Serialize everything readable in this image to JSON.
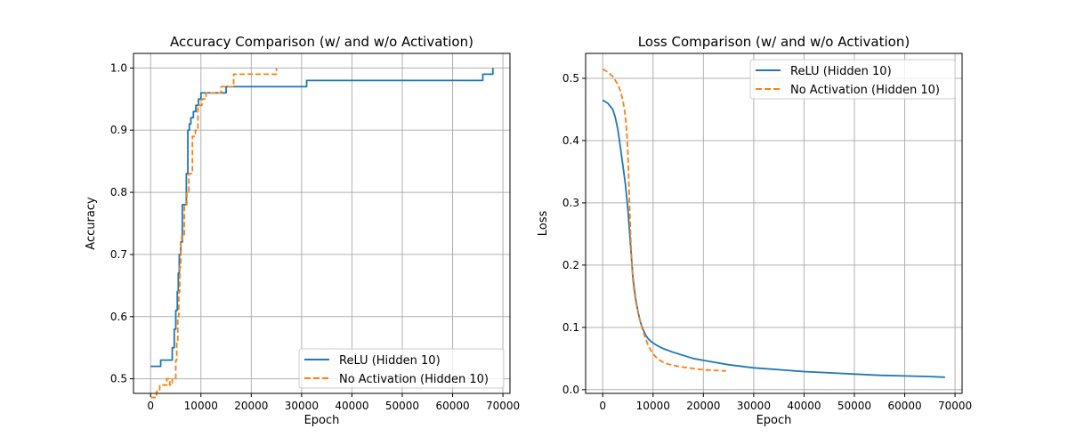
{
  "colors": {
    "relu": "#1f77b4",
    "noact": "#ff7f0e",
    "grid": "#b0b0b0",
    "axis": "#000000"
  },
  "chart_data": [
    {
      "type": "line",
      "title": "Accuracy Comparison (w/ and w/o Activation)",
      "xlabel": "Epoch",
      "ylabel": "Accuracy",
      "xlim": [
        -3400,
        71400
      ],
      "ylim": [
        0.4765,
        1.0235
      ],
      "xticks": [
        0,
        10000,
        20000,
        30000,
        40000,
        50000,
        60000,
        70000
      ],
      "yticks": [
        0.5,
        0.6,
        0.7,
        0.8,
        0.9,
        1.0
      ],
      "xtick_labels": [
        "0",
        "10000",
        "20000",
        "30000",
        "40000",
        "50000",
        "60000",
        "70000"
      ],
      "ytick_labels": [
        "0.5",
        "0.6",
        "0.7",
        "0.8",
        "0.9",
        "1.0"
      ],
      "grid": true,
      "legend": "lower-right",
      "series": [
        {
          "name": "ReLU (Hidden 10)",
          "style": "solid",
          "x": [
            0,
            2000,
            2000,
            4300,
            4300,
            4700,
            4700,
            5000,
            5000,
            5300,
            5300,
            5500,
            5500,
            5700,
            5700,
            6000,
            6000,
            6300,
            6300,
            7100,
            7100,
            7400,
            7400,
            7700,
            7700,
            8000,
            8000,
            8500,
            8500,
            9000,
            9000,
            9500,
            9500,
            10000,
            10000,
            15000,
            15000,
            31000,
            31000,
            66000,
            66000,
            68000,
            68000
          ],
          "y": [
            0.52,
            0.52,
            0.53,
            0.53,
            0.55,
            0.55,
            0.58,
            0.58,
            0.61,
            0.61,
            0.64,
            0.64,
            0.67,
            0.67,
            0.7,
            0.7,
            0.72,
            0.72,
            0.78,
            0.78,
            0.83,
            0.83,
            0.9,
            0.9,
            0.91,
            0.91,
            0.92,
            0.92,
            0.93,
            0.93,
            0.94,
            0.94,
            0.95,
            0.95,
            0.96,
            0.96,
            0.97,
            0.97,
            0.98,
            0.98,
            0.99,
            0.99,
            1.0
          ]
        },
        {
          "name": "No Activation (Hidden 10)",
          "style": "dashed",
          "x": [
            0,
            1200,
            1200,
            1800,
            1800,
            3200,
            3200,
            3800,
            3800,
            4300,
            4300,
            5000,
            5000,
            5200,
            5200,
            5400,
            5400,
            5600,
            5600,
            5800,
            5800,
            6000,
            6000,
            6200,
            6200,
            6700,
            6700,
            7200,
            7200,
            7600,
            7600,
            8300,
            8300,
            8900,
            8900,
            9400,
            9400,
            10200,
            10200,
            11000,
            11000,
            14000,
            14000,
            16500,
            16500,
            25000,
            25000
          ],
          "y": [
            0.47,
            0.47,
            0.48,
            0.48,
            0.49,
            0.49,
            0.5,
            0.5,
            0.49,
            0.49,
            0.5,
            0.5,
            0.53,
            0.53,
            0.56,
            0.56,
            0.6,
            0.6,
            0.64,
            0.64,
            0.68,
            0.68,
            0.72,
            0.72,
            0.73,
            0.73,
            0.78,
            0.78,
            0.8,
            0.8,
            0.83,
            0.83,
            0.89,
            0.89,
            0.9,
            0.9,
            0.94,
            0.94,
            0.95,
            0.95,
            0.96,
            0.96,
            0.97,
            0.97,
            0.99,
            0.99,
            1.0
          ]
        }
      ]
    },
    {
      "type": "line",
      "title": "Loss Comparison (w/ and w/o Activation)",
      "xlabel": "Epoch",
      "ylabel": "Loss",
      "xlim": [
        -3400,
        71400
      ],
      "ylim": [
        -0.006,
        0.54
      ],
      "xticks": [
        0,
        10000,
        20000,
        30000,
        40000,
        50000,
        60000,
        70000
      ],
      "yticks": [
        0.0,
        0.1,
        0.2,
        0.3,
        0.4,
        0.5
      ],
      "xtick_labels": [
        "0",
        "10000",
        "20000",
        "30000",
        "40000",
        "50000",
        "60000",
        "70000"
      ],
      "ytick_labels": [
        "0.0",
        "0.1",
        "0.2",
        "0.3",
        "0.4",
        "0.5"
      ],
      "grid": true,
      "legend": "top-right",
      "series": [
        {
          "name": "ReLU (Hidden 10)",
          "style": "solid",
          "x": [
            0,
            1000,
            2000,
            2500,
            3000,
            3500,
            4000,
            4500,
            5000,
            5500,
            6000,
            6500,
            7000,
            7500,
            8000,
            8500,
            9000,
            9500,
            10000,
            11000,
            12000,
            14000,
            16000,
            18000,
            20000,
            25000,
            30000,
            35000,
            40000,
            45000,
            50000,
            55000,
            60000,
            65000,
            68000
          ],
          "y": [
            0.465,
            0.46,
            0.45,
            0.437,
            0.418,
            0.39,
            0.36,
            0.33,
            0.29,
            0.235,
            0.18,
            0.148,
            0.125,
            0.108,
            0.097,
            0.088,
            0.082,
            0.078,
            0.075,
            0.07,
            0.066,
            0.06,
            0.055,
            0.05,
            0.047,
            0.04,
            0.035,
            0.032,
            0.029,
            0.027,
            0.025,
            0.023,
            0.022,
            0.021,
            0.02
          ]
        },
        {
          "name": "No Activation (Hidden 10)",
          "style": "dashed",
          "x": [
            0,
            1000,
            2000,
            3000,
            3500,
            4000,
            4500,
            4800,
            5000,
            5200,
            5400,
            5600,
            5800,
            6000,
            6300,
            6600,
            7000,
            7500,
            8000,
            8500,
            9000,
            9500,
            10000,
            11000,
            12000,
            13000,
            14000,
            16000,
            18000,
            20000,
            22000,
            24500
          ],
          "y": [
            0.515,
            0.51,
            0.503,
            0.49,
            0.48,
            0.465,
            0.44,
            0.41,
            0.38,
            0.33,
            0.28,
            0.235,
            0.2,
            0.175,
            0.155,
            0.14,
            0.125,
            0.108,
            0.094,
            0.082,
            0.072,
            0.064,
            0.057,
            0.049,
            0.044,
            0.041,
            0.039,
            0.036,
            0.034,
            0.032,
            0.031,
            0.03
          ]
        }
      ]
    }
  ]
}
